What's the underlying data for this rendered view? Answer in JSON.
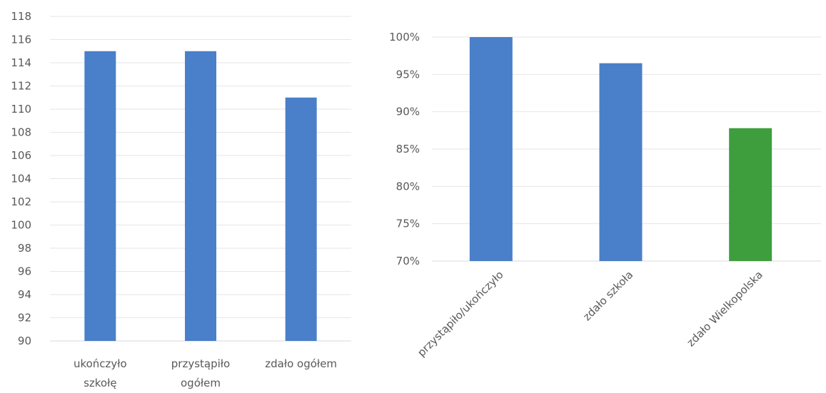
{
  "chart_data": [
    {
      "type": "bar",
      "title": "",
      "xlabel": "",
      "ylabel": "",
      "categories": [
        [
          "ukończyło",
          "szkołę"
        ],
        [
          "przystąpiło",
          "ogółem"
        ],
        [
          "zdało ogółem"
        ]
      ],
      "values": [
        115,
        115,
        111
      ],
      "ylim": [
        90,
        118
      ],
      "ytick_step": 2,
      "grid": true,
      "legend": "none",
      "bar_colors": [
        "#4a7fc9",
        "#4a7fc9",
        "#4a7fc9"
      ]
    },
    {
      "type": "bar",
      "title": "",
      "xlabel": "",
      "ylabel": "",
      "categories": [
        "przystąpiło/ukończyło",
        "zdało szkoła",
        "zdało Wielkopolska"
      ],
      "values": [
        1.0,
        0.965,
        0.878
      ],
      "ylim": [
        0.7,
        1.0
      ],
      "ytick_step": 0.05,
      "y_format": "percent",
      "grid": true,
      "legend": "none",
      "bar_colors": [
        "#4a7fc9",
        "#4a7fc9",
        "#3e9e3e"
      ]
    }
  ]
}
